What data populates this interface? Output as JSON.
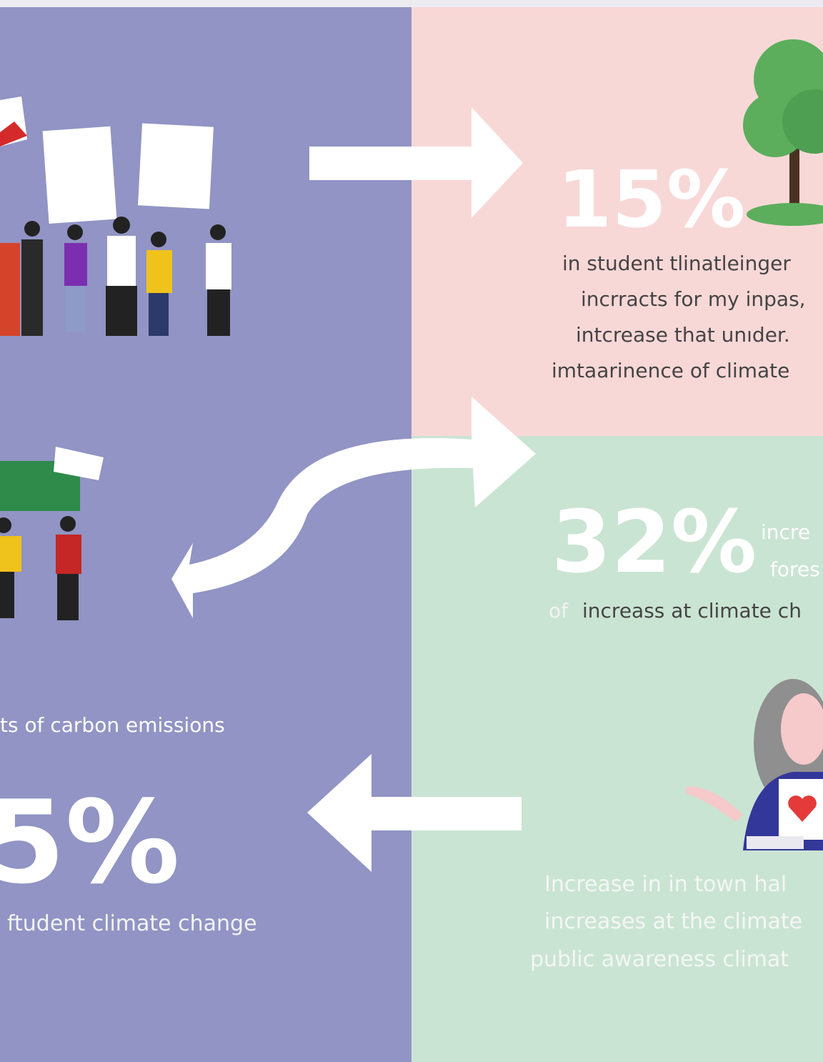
{
  "panels": {
    "top_right": {
      "stat": "15%",
      "lines": [
        "in student tlinatleinger",
        "incrracts for my inpas,",
        "intcrease that unıder.",
        "imtaarinence of climate"
      ]
    },
    "middle_right": {
      "stat": "32%",
      "side": [
        "incre",
        "fores"
      ],
      "caption_prefix": "of",
      "caption": "increass at climate ch"
    },
    "bottom_right": {
      "lines": [
        "Increase in in town hal",
        "increases at the climate",
        "public awareness climat"
      ]
    },
    "left": {
      "heading": "ts of carbon emissions",
      "stat": "5%",
      "caption": "ftudent climate change"
    }
  }
}
